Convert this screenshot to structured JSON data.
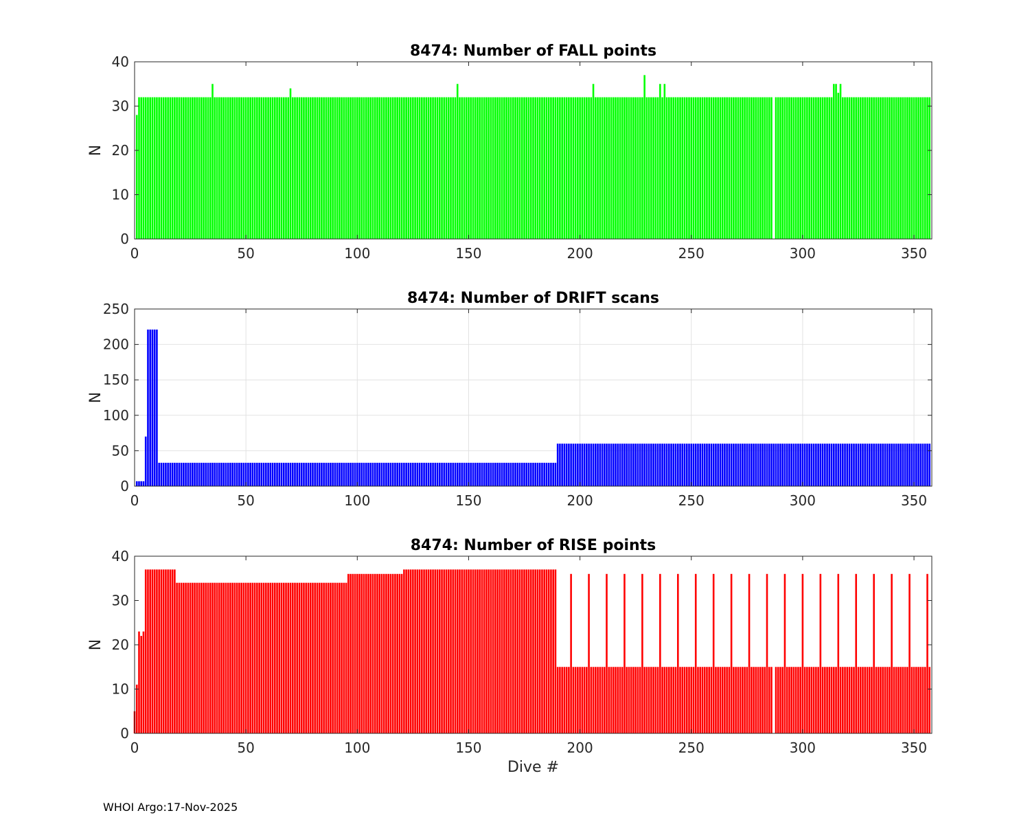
{
  "footer": "WHOI Argo:17-Nov-2025",
  "chart_data": [
    {
      "type": "bar",
      "title": "8474: Number of FALL points",
      "xlabel": "",
      "ylabel": "N",
      "color": "#00ff00",
      "xlim": [
        0,
        358
      ],
      "ylim": [
        0,
        40
      ],
      "xticks": [
        0,
        50,
        100,
        150,
        200,
        250,
        300,
        350
      ],
      "yticks": [
        0,
        10,
        20,
        30,
        40
      ],
      "grid": false,
      "segments": [
        {
          "from": 1,
          "to": 1,
          "value": 28
        },
        {
          "from": 2,
          "to": 34,
          "value": 32
        },
        {
          "from": 35,
          "to": 35,
          "value": 35
        },
        {
          "from": 36,
          "to": 69,
          "value": 32
        },
        {
          "from": 70,
          "to": 70,
          "value": 34
        },
        {
          "from": 71,
          "to": 144,
          "value": 32
        },
        {
          "from": 145,
          "to": 145,
          "value": 35
        },
        {
          "from": 146,
          "to": 205,
          "value": 32
        },
        {
          "from": 206,
          "to": 206,
          "value": 35
        },
        {
          "from": 207,
          "to": 228,
          "value": 32
        },
        {
          "from": 229,
          "to": 229,
          "value": 37
        },
        {
          "from": 230,
          "to": 235,
          "value": 32
        },
        {
          "from": 236,
          "to": 236,
          "value": 35
        },
        {
          "from": 237,
          "to": 237,
          "value": 32
        },
        {
          "from": 238,
          "to": 238,
          "value": 35
        },
        {
          "from": 239,
          "to": 286,
          "value": 32
        },
        {
          "from": 287,
          "to": 287,
          "value": 0
        },
        {
          "from": 288,
          "to": 313,
          "value": 32
        },
        {
          "from": 314,
          "to": 315,
          "value": 35
        },
        {
          "from": 316,
          "to": 316,
          "value": 33
        },
        {
          "from": 317,
          "to": 317,
          "value": 35
        },
        {
          "from": 318,
          "to": 357,
          "value": 32
        }
      ]
    },
    {
      "type": "bar",
      "title": "8474: Number of DRIFT scans",
      "xlabel": "",
      "ylabel": "N",
      "color": "#0000ff",
      "xlim": [
        0,
        358
      ],
      "ylim": [
        0,
        250
      ],
      "xticks": [
        0,
        50,
        100,
        150,
        200,
        250,
        300,
        350
      ],
      "yticks": [
        0,
        50,
        100,
        150,
        200,
        250
      ],
      "grid": true,
      "segments": [
        {
          "from": 1,
          "to": 4,
          "value": 7
        },
        {
          "from": 5,
          "to": 5,
          "value": 70
        },
        {
          "from": 6,
          "to": 10,
          "value": 221
        },
        {
          "from": 11,
          "to": 189,
          "value": 33
        },
        {
          "from": 190,
          "to": 357,
          "value": 60
        }
      ]
    },
    {
      "type": "bar",
      "title": "8474: Number of RISE points",
      "xlabel": "Dive #",
      "ylabel": "N",
      "color": "#ff0000",
      "xlim": [
        0,
        358
      ],
      "ylim": [
        0,
        40
      ],
      "xticks": [
        0,
        50,
        100,
        150,
        200,
        250,
        300,
        350
      ],
      "yticks": [
        0,
        10,
        20,
        30,
        40
      ],
      "grid": false,
      "segments": [
        {
          "from": 0,
          "to": 0,
          "value": 5
        },
        {
          "from": 1,
          "to": 1,
          "value": 11
        },
        {
          "from": 2,
          "to": 2,
          "value": 23
        },
        {
          "from": 3,
          "to": 3,
          "value": 22
        },
        {
          "from": 4,
          "to": 4,
          "value": 23
        },
        {
          "from": 5,
          "to": 18,
          "value": 37
        },
        {
          "from": 19,
          "to": 49,
          "value": 34
        },
        {
          "from": 50,
          "to": 95,
          "value": 34
        },
        {
          "from": 96,
          "to": 120,
          "value": 36
        },
        {
          "from": 121,
          "to": 189,
          "value": 37
        },
        {
          "from": 190,
          "to": 286,
          "value": 15
        },
        {
          "from": 287,
          "to": 287,
          "value": 0
        },
        {
          "from": 288,
          "to": 357,
          "value": 15
        }
      ],
      "spikes": {
        "start": 196,
        "step": 8,
        "value": 36
      }
    }
  ]
}
